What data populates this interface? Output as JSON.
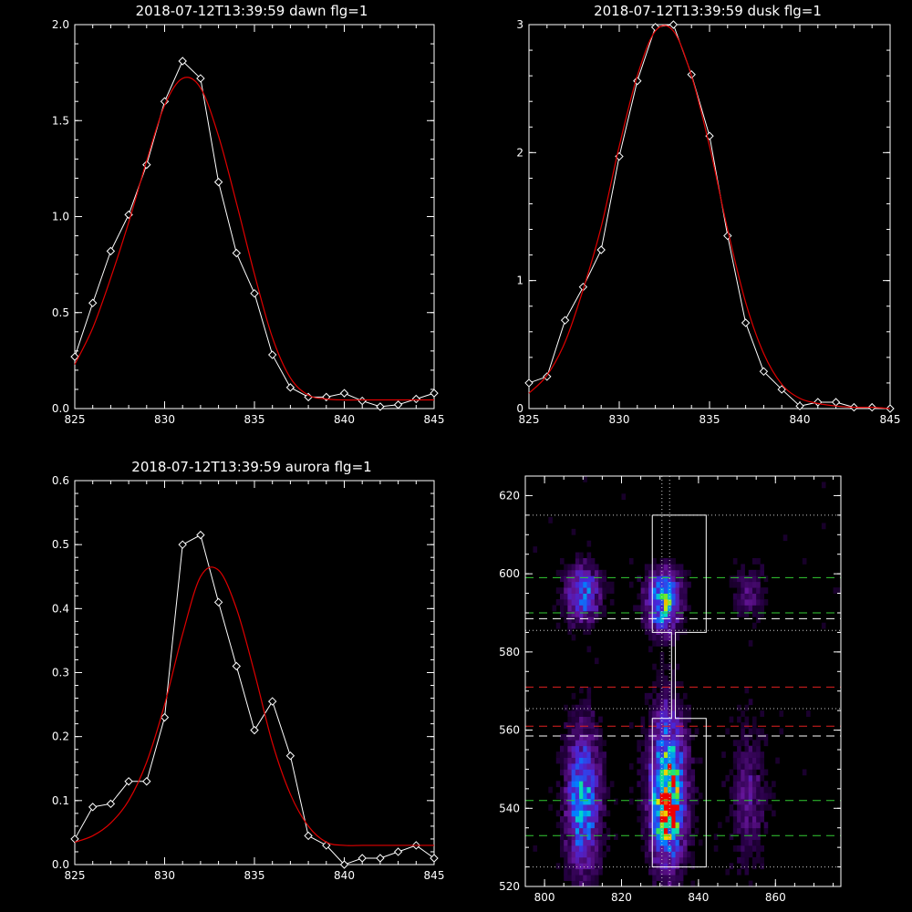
{
  "colors": {
    "background": "#000000",
    "axes": "#ffffff",
    "data_line": "#ffffff",
    "fit_line": "#e00000",
    "box": "#ffffff",
    "dashed_green": "#33cc33",
    "dashed_red": "#e02020",
    "dashed_white": "#ffffff",
    "dotted": "#cccccc"
  },
  "chart_data": [
    {
      "type": "line",
      "title": "2018-07-12T13:39:59 dawn flg=1",
      "xlim": [
        825,
        845
      ],
      "ylim": [
        0,
        2.0
      ],
      "xticks": [
        825,
        830,
        835,
        840,
        845
      ],
      "yticks": [
        0.0,
        0.5,
        1.0,
        1.5,
        2.0
      ],
      "ytick_labels": [
        "0.0",
        "0.5",
        "1.0",
        "1.5",
        "2.0"
      ],
      "x": [
        825,
        826,
        827,
        828,
        829,
        830,
        831,
        832,
        833,
        834,
        835,
        836,
        837,
        838,
        839,
        840,
        841,
        842,
        843,
        844,
        845
      ],
      "series": [
        {
          "values": [
            0.27,
            0.55,
            0.82,
            1.01,
            1.27,
            1.6,
            1.81,
            1.72,
            1.18,
            0.81,
            0.6,
            0.28,
            0.11,
            0.06,
            0.06,
            0.08,
            0.04,
            0.01,
            0.02,
            0.05,
            0.08
          ],
          "style": "data"
        },
        {
          "values": [
            0.23,
            0.42,
            0.68,
            0.97,
            1.29,
            1.58,
            1.72,
            1.67,
            1.42,
            1.07,
            0.7,
            0.37,
            0.16,
            0.07,
            0.05,
            0.045,
            0.045,
            0.045,
            0.045,
            0.045,
            0.045
          ],
          "style": "fit"
        }
      ]
    },
    {
      "type": "line",
      "title": "2018-07-12T13:39:59 dusk flg=1",
      "xlim": [
        825,
        845
      ],
      "ylim": [
        0,
        3.0
      ],
      "xticks": [
        825,
        830,
        835,
        840,
        845
      ],
      "yticks": [
        0,
        1,
        2,
        3
      ],
      "ytick_labels": [
        "0",
        "1",
        "2",
        "3"
      ],
      "x": [
        825,
        826,
        827,
        828,
        829,
        830,
        831,
        832,
        833,
        834,
        835,
        836,
        837,
        838,
        839,
        840,
        841,
        842,
        843,
        844,
        845
      ],
      "series": [
        {
          "values": [
            0.2,
            0.25,
            0.69,
            0.95,
            1.24,
            1.97,
            2.56,
            2.98,
            3.0,
            2.61,
            2.13,
            1.35,
            0.67,
            0.29,
            0.15,
            0.02,
            0.05,
            0.05,
            0.01,
            0.01,
            0.0
          ],
          "style": "data"
        },
        {
          "values": [
            0.12,
            0.26,
            0.52,
            0.93,
            1.42,
            2.05,
            2.6,
            2.95,
            2.95,
            2.6,
            2.05,
            1.4,
            0.83,
            0.43,
            0.19,
            0.08,
            0.04,
            0.02,
            0.01,
            0.01,
            0.0
          ],
          "style": "fit"
        }
      ]
    },
    {
      "type": "line",
      "title": "2018-07-12T13:39:59 aurora flg=1",
      "xlim": [
        825,
        845
      ],
      "ylim": [
        0,
        0.6
      ],
      "xticks": [
        825,
        830,
        835,
        840,
        845
      ],
      "yticks": [
        0.0,
        0.1,
        0.2,
        0.3,
        0.4,
        0.5,
        0.6
      ],
      "ytick_labels": [
        "0.0",
        "0.1",
        "0.2",
        "0.3",
        "0.4",
        "0.5",
        "0.6"
      ],
      "x": [
        825,
        826,
        827,
        828,
        829,
        830,
        831,
        832,
        833,
        834,
        835,
        836,
        837,
        838,
        839,
        840,
        841,
        842,
        843,
        844,
        845
      ],
      "series": [
        {
          "values": [
            0.04,
            0.09,
            0.095,
            0.13,
            0.13,
            0.23,
            0.5,
            0.515,
            0.41,
            0.31,
            0.21,
            0.255,
            0.17,
            0.045,
            0.03,
            0.0,
            0.01,
            0.01,
            0.02,
            0.03,
            0.01
          ],
          "style": "data"
        },
        {
          "values": [
            0.035,
            0.045,
            0.065,
            0.1,
            0.16,
            0.25,
            0.36,
            0.45,
            0.46,
            0.4,
            0.3,
            0.19,
            0.11,
            0.06,
            0.035,
            0.03,
            0.03,
            0.03,
            0.03,
            0.03,
            0.03
          ],
          "style": "fit"
        }
      ]
    },
    {
      "type": "heatmap",
      "title": "",
      "xlim": [
        795,
        877
      ],
      "ylim": [
        520,
        625
      ],
      "xticks": [
        800,
        820,
        840,
        860
      ],
      "yticks": [
        520,
        540,
        560,
        580,
        600,
        620
      ],
      "blobs": [
        {
          "x": 810,
          "y": 595,
          "sx": 3.0,
          "sy": 5,
          "amp": 0.45
        },
        {
          "x": 810,
          "y": 542,
          "sx": 3.0,
          "sy": 12,
          "amp": 0.55
        },
        {
          "x": 831,
          "y": 593,
          "sx": 3.0,
          "sy": 5,
          "amp": 0.65
        },
        {
          "x": 832,
          "y": 545,
          "sx": 3.2,
          "sy": 13,
          "amp": 0.75
        },
        {
          "x": 832,
          "y": 538,
          "sx": 2.0,
          "sy": 4,
          "amp": 0.45
        },
        {
          "x": 853,
          "y": 595,
          "sx": 3.2,
          "sy": 5,
          "amp": 0.15
        },
        {
          "x": 853,
          "y": 543,
          "sx": 3.2,
          "sy": 12,
          "amp": 0.18
        }
      ],
      "box": [
        [
          828,
          615
        ],
        [
          842,
          615
        ],
        [
          842,
          585
        ],
        [
          834,
          585
        ],
        [
          834,
          563
        ],
        [
          842,
          563
        ],
        [
          842,
          525
        ],
        [
          828,
          525
        ],
        [
          828,
          563
        ],
        [
          833,
          563
        ],
        [
          833,
          585
        ],
        [
          828,
          585
        ],
        [
          828,
          615
        ]
      ],
      "vlines_dotted": [
        830.5,
        832.5
      ],
      "hlines": [
        {
          "y": 615,
          "style": "dotted",
          "color": "#cccccc"
        },
        {
          "y": 599,
          "style": "dashed",
          "color": "#33cc33"
        },
        {
          "y": 590,
          "style": "dashed",
          "color": "#33cc33"
        },
        {
          "y": 588.5,
          "style": "dashed",
          "color": "#ffffff"
        },
        {
          "y": 585.5,
          "style": "dotted",
          "color": "#cccccc"
        },
        {
          "y": 571,
          "style": "dashed",
          "color": "#e02020"
        },
        {
          "y": 565.5,
          "style": "dotted",
          "color": "#cccccc"
        },
        {
          "y": 561,
          "style": "dashed",
          "color": "#e02020"
        },
        {
          "y": 558.5,
          "style": "dashed",
          "color": "#ffffff"
        },
        {
          "y": 542,
          "style": "dashed",
          "color": "#33cc33"
        },
        {
          "y": 533,
          "style": "dashed",
          "color": "#33cc33"
        },
        {
          "y": 525,
          "style": "dotted",
          "color": "#cccccc"
        }
      ]
    }
  ]
}
